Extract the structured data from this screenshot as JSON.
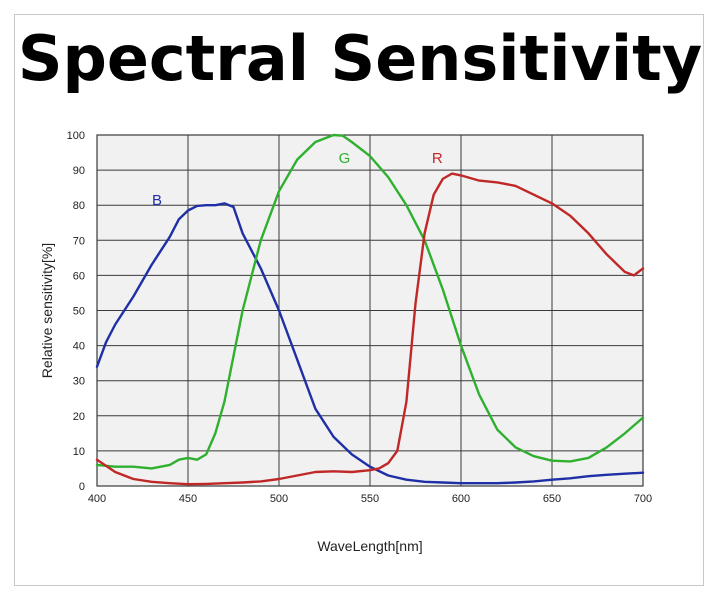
{
  "title": "Spectral Sensitivity",
  "chart_data": {
    "type": "line",
    "title": "Spectral Sensitivity",
    "xlabel": "WaveLength[nm]",
    "ylabel": "Relative sensitivity[%]",
    "xlim": [
      400,
      700
    ],
    "ylim": [
      0,
      100
    ],
    "xticks": [
      400,
      450,
      500,
      550,
      600,
      650,
      700
    ],
    "yticks": [
      0,
      10,
      20,
      30,
      40,
      50,
      60,
      70,
      80,
      90,
      100
    ],
    "grid": true,
    "series": [
      {
        "name": "B",
        "color": "#1f2fa6",
        "label_at": [
          433,
          80
        ],
        "x": [
          400,
          405,
          410,
          420,
          430,
          440,
          445,
          450,
          455,
          460,
          465,
          470,
          475,
          480,
          490,
          500,
          510,
          520,
          530,
          540,
          550,
          560,
          570,
          580,
          590,
          600,
          610,
          620,
          630,
          640,
          650,
          660,
          670,
          680,
          690,
          700
        ],
        "y": [
          34,
          41,
          46,
          54,
          63,
          71,
          76,
          78.5,
          79.8,
          80,
          80,
          80.5,
          79.5,
          72,
          62,
          50,
          36,
          22,
          14,
          9,
          5.5,
          3,
          1.8,
          1.2,
          1.0,
          0.8,
          0.8,
          0.8,
          1.0,
          1.3,
          1.8,
          2.2,
          2.8,
          3.2,
          3.5,
          3.8
        ]
      },
      {
        "name": "G",
        "color": "#2fb02f",
        "label_at": [
          536,
          92
        ],
        "x": [
          400,
          410,
          420,
          430,
          440,
          445,
          450,
          455,
          460,
          465,
          470,
          475,
          480,
          490,
          500,
          510,
          520,
          530,
          535,
          540,
          550,
          560,
          570,
          580,
          590,
          600,
          610,
          620,
          630,
          640,
          650,
          660,
          670,
          680,
          690,
          700
        ],
        "y": [
          6,
          5.5,
          5.5,
          5,
          6,
          7.5,
          8,
          7.5,
          9,
          15,
          24,
          37,
          50,
          70,
          84,
          93,
          98,
          100,
          99.8,
          98,
          94,
          88,
          80,
          70,
          56,
          40,
          26,
          16,
          11,
          8.5,
          7.2,
          7,
          8,
          11,
          15,
          19.5
        ]
      },
      {
        "name": "R",
        "color": "#c02828",
        "label_at": [
          587,
          92
        ],
        "x": [
          400,
          410,
          420,
          430,
          440,
          450,
          460,
          470,
          480,
          490,
          500,
          510,
          520,
          530,
          540,
          550,
          555,
          560,
          565,
          570,
          575,
          580,
          585,
          590,
          595,
          600,
          610,
          620,
          630,
          640,
          650,
          660,
          670,
          680,
          690,
          695,
          700
        ],
        "y": [
          7.5,
          4,
          2,
          1.2,
          0.8,
          0.5,
          0.6,
          0.8,
          1,
          1.3,
          2,
          3,
          4,
          4.2,
          4,
          4.5,
          5,
          6.5,
          10,
          24,
          52,
          72,
          83,
          87.5,
          89,
          88.5,
          87,
          86.5,
          85.5,
          83,
          80.5,
          77,
          72,
          66,
          61,
          60,
          62
        ]
      }
    ]
  }
}
